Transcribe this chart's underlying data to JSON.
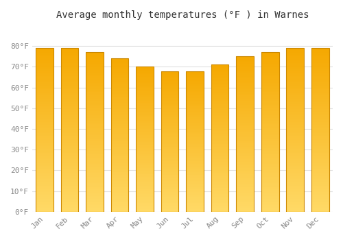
{
  "title": "Average monthly temperatures (°F ) in Warnes",
  "months": [
    "Jan",
    "Feb",
    "Mar",
    "Apr",
    "May",
    "Jun",
    "Jul",
    "Aug",
    "Sep",
    "Oct",
    "Nov",
    "Dec"
  ],
  "values": [
    79,
    79,
    77,
    74,
    70,
    68,
    68,
    71,
    75,
    77,
    79,
    79
  ],
  "bar_color_top": "#F5A800",
  "bar_color_bottom": "#FFD966",
  "bar_edge_color": "#CC8800",
  "ylim": [
    0,
    90
  ],
  "yticks": [
    0,
    10,
    20,
    30,
    40,
    50,
    60,
    70,
    80
  ],
  "ytick_labels": [
    "0°F",
    "10°F",
    "20°F",
    "30°F",
    "40°F",
    "50°F",
    "60°F",
    "70°F",
    "80°F"
  ],
  "background_color": "#ffffff",
  "grid_color": "#e0e0e0",
  "title_fontsize": 10,
  "tick_fontsize": 8,
  "font_family": "monospace",
  "bar_width": 0.7,
  "gradient_steps": 100
}
